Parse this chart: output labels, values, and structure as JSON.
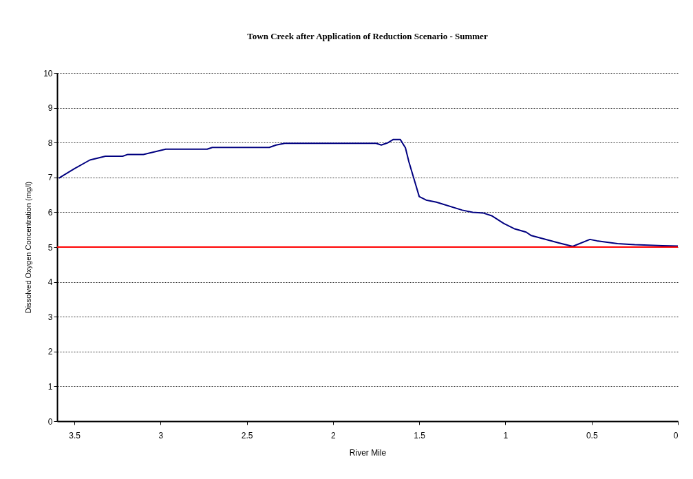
{
  "chart_data": {
    "type": "line",
    "title": "Town Creek after Application of Reduction Scenario - Summer",
    "xlabel": "River Mile",
    "ylabel": "Dissolved Oxygen Concentration (mg/l)",
    "x": [
      3.59,
      3.5,
      3.41,
      3.32,
      3.22,
      3.19,
      3.1,
      2.97,
      2.73,
      2.7,
      2.37,
      2.33,
      2.28,
      1.75,
      1.72,
      1.68,
      1.65,
      1.61,
      1.58,
      1.56,
      1.53,
      1.5,
      1.46,
      1.4,
      1.25,
      1.19,
      1.13,
      1.08,
      1.01,
      0.95,
      0.88,
      0.85,
      0.69,
      0.61,
      0.51,
      0.47,
      0.35,
      0.25,
      0.09,
      0
    ],
    "series": [
      {
        "color": "#000080",
        "values": [
          6.98,
          7.25,
          7.5,
          7.61,
          7.61,
          7.66,
          7.66,
          7.81,
          7.81,
          7.86,
          7.86,
          7.93,
          7.98,
          7.98,
          7.93,
          8.0,
          8.09,
          8.09,
          7.85,
          7.45,
          6.95,
          6.45,
          6.35,
          6.29,
          6.06,
          6.0,
          5.98,
          5.9,
          5.68,
          5.53,
          5.43,
          5.33,
          5.12,
          5.02,
          5.22,
          5.18,
          5.1,
          5.07,
          5.04,
          5.03
        ]
      }
    ],
    "ref_lines": [
      {
        "axis": "y",
        "value": 5,
        "color": "#ff0000"
      }
    ],
    "xlim": [
      3.6,
      0
    ],
    "xticks": [
      3.5,
      3,
      2.5,
      2,
      1.5,
      1,
      0.5,
      0
    ],
    "ylim": [
      0,
      10
    ],
    "yticks": [
      0,
      1,
      2,
      3,
      4,
      5,
      6,
      7,
      8,
      9,
      10
    ],
    "grid": "y"
  }
}
